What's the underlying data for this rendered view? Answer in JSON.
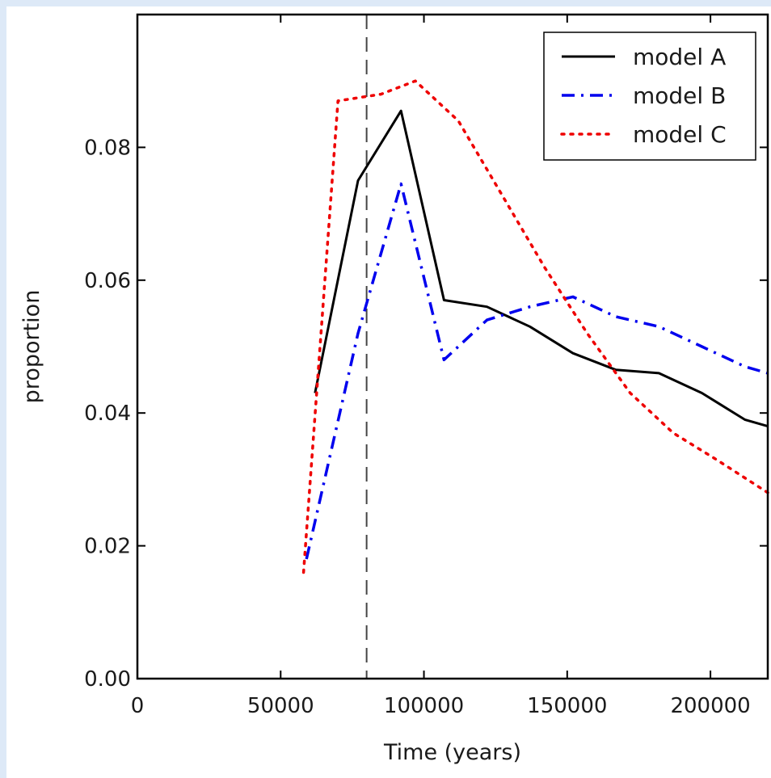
{
  "chart_data": {
    "type": "line",
    "title": "",
    "xlabel": "Time (years)",
    "ylabel": "proportion",
    "xlim": [
      0,
      220000
    ],
    "ylim": [
      0,
      0.1
    ],
    "xticks": [
      0,
      50000,
      100000,
      150000,
      200000
    ],
    "xtick_labels": [
      "0",
      "50000",
      "100000",
      "150000",
      "200000"
    ],
    "yticks": [
      0.0,
      0.02,
      0.04,
      0.06,
      0.08
    ],
    "ytick_labels": [
      "0.00",
      "0.02",
      "0.04",
      "0.06",
      "0.08"
    ],
    "grid": false,
    "legend_position": "top-right",
    "vertical_reference_line": {
      "x": 80000,
      "style": "dashed",
      "color": "#444444"
    },
    "series": [
      {
        "name": "model A",
        "color": "#000000",
        "linestyle": "solid",
        "x": [
          62000,
          77000,
          92000,
          107000,
          122000,
          137000,
          152000,
          167000,
          182000,
          197000,
          212000,
          220000
        ],
        "y": [
          0.043,
          0.075,
          0.0855,
          0.057,
          0.056,
          0.053,
          0.049,
          0.0465,
          0.046,
          0.043,
          0.039,
          0.038
        ]
      },
      {
        "name": "model B",
        "color": "#0000ee",
        "linestyle": "dashdot",
        "x": [
          59000,
          77000,
          92000,
          107000,
          122000,
          137000,
          152000,
          167000,
          182000,
          197000,
          212000,
          220000
        ],
        "y": [
          0.018,
          0.052,
          0.0745,
          0.048,
          0.054,
          0.056,
          0.0575,
          0.0545,
          0.053,
          0.05,
          0.047,
          0.046
        ]
      },
      {
        "name": "model C",
        "color": "#ee0000",
        "linestyle": "dotted",
        "x": [
          58000,
          70000,
          85000,
          97000,
          112000,
          127000,
          142000,
          157000,
          172000,
          187000,
          202000,
          220000
        ],
        "y": [
          0.016,
          0.087,
          0.088,
          0.09,
          0.084,
          0.073,
          0.062,
          0.052,
          0.043,
          0.037,
          0.033,
          0.028
        ]
      }
    ]
  }
}
